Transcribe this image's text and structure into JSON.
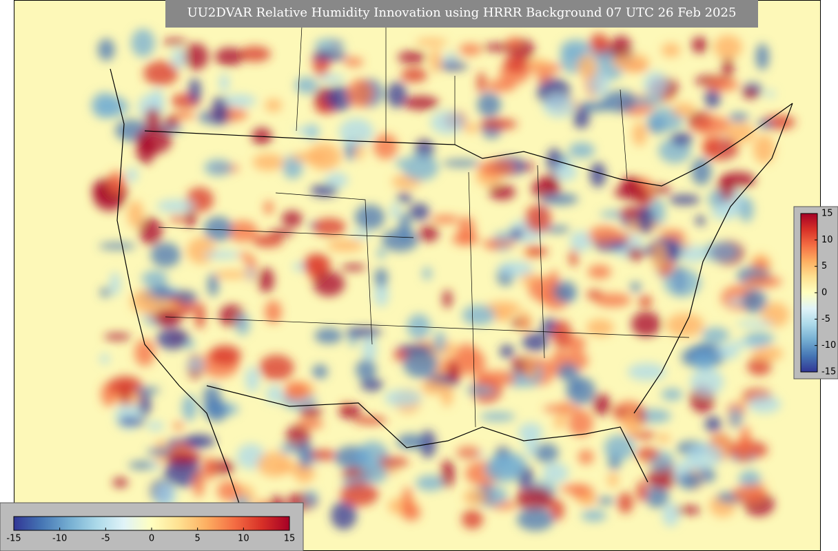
{
  "title": "UU2DVAR Relative Humidity Innovation using HRRR Background 07 UTC 26 Feb 2025",
  "colors": [
    "#313695",
    "#4575b4",
    "#74add1",
    "#abd9e9",
    "#e0f3f8",
    "#ffffbf",
    "#fee090",
    "#fdae61",
    "#f46d43",
    "#d73027",
    "#a50026"
  ],
  "colorbars": [
    {
      "orientation": "horizontal",
      "range": [
        -15,
        15
      ],
      "ticks": [
        -15,
        -10,
        -5,
        0,
        5,
        10,
        15
      ]
    },
    {
      "orientation": "vertical",
      "range": [
        -15,
        15
      ],
      "ticks": [
        15,
        10,
        5,
        0,
        -5,
        -10,
        -15
      ]
    }
  ]
}
